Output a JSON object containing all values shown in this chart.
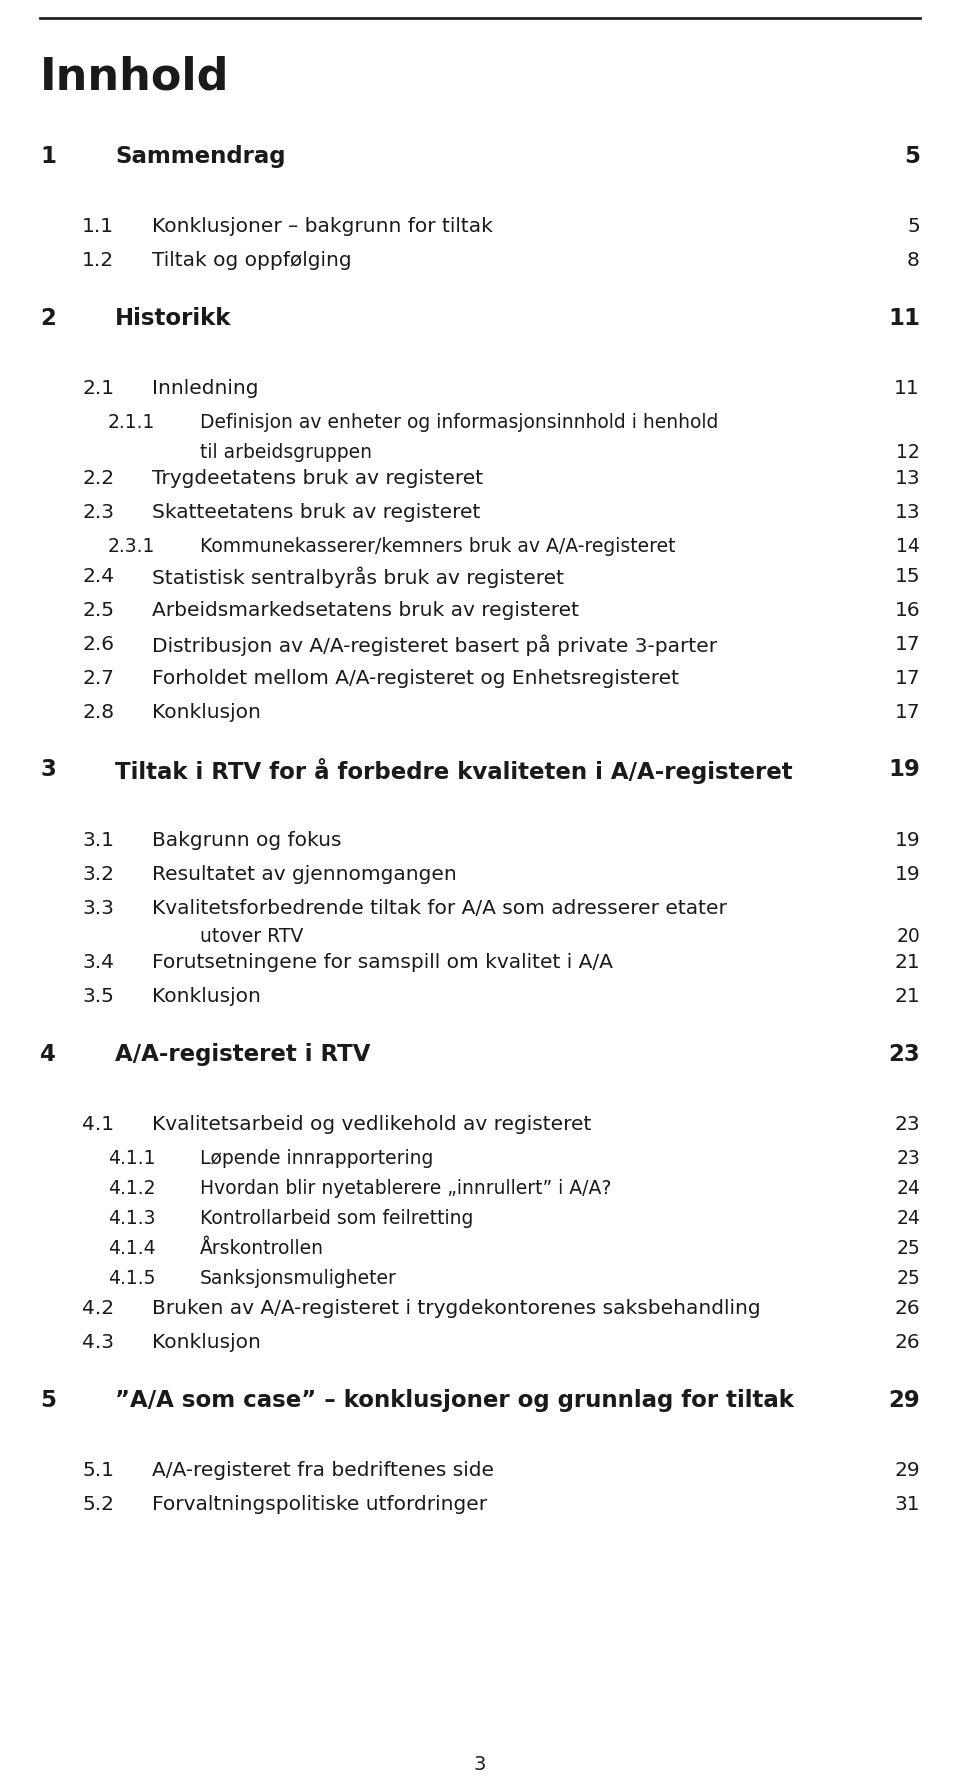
{
  "bg_color": "#ffffff",
  "text_color": "#1a1a1a",
  "title": "Innhold",
  "page_number_bottom": "3",
  "entries": [
    {
      "level": 1,
      "num": "1",
      "text": "Sammendrag",
      "page": "5",
      "bold": true
    },
    {
      "level": 2,
      "num": "1.1",
      "text": "Konklusjoner – bakgrunn for tiltak",
      "page": "5",
      "bold": false
    },
    {
      "level": 2,
      "num": "1.2",
      "text": "Tiltak og oppfølging",
      "page": "8",
      "bold": false
    },
    {
      "level": 1,
      "num": "2",
      "text": "Historikk",
      "page": "11",
      "bold": true
    },
    {
      "level": 2,
      "num": "2.1",
      "text": "Innledning",
      "page": "11",
      "bold": false
    },
    {
      "level": 3,
      "num": "2.1.1",
      "text": "Definisjon av enheter og informasjonsinnhold i henhold",
      "page": "",
      "bold": false
    },
    {
      "level": 3,
      "num": "",
      "text": "til arbeidsgruppen",
      "page": "12",
      "bold": false
    },
    {
      "level": 2,
      "num": "2.2",
      "text": "Trygdeetatens bruk av registeret",
      "page": "13",
      "bold": false
    },
    {
      "level": 2,
      "num": "2.3",
      "text": "Skatteetatens bruk av registeret",
      "page": "13",
      "bold": false
    },
    {
      "level": 3,
      "num": "2.3.1",
      "text": "Kommunekasserer/kemners bruk av A/A-registeret",
      "page": "14",
      "bold": false
    },
    {
      "level": 2,
      "num": "2.4",
      "text": "Statistisk sentralbyrås bruk av registeret",
      "page": "15",
      "bold": false
    },
    {
      "level": 2,
      "num": "2.5",
      "text": "Arbeidsmarkedsetatens bruk av registeret",
      "page": "16",
      "bold": false
    },
    {
      "level": 2,
      "num": "2.6",
      "text": "Distribusjon av A/A-registeret basert på private 3-parter",
      "page": "17",
      "bold": false
    },
    {
      "level": 2,
      "num": "2.7",
      "text": "Forholdet mellom A/A-registeret og Enhetsregisteret",
      "page": "17",
      "bold": false
    },
    {
      "level": 2,
      "num": "2.8",
      "text": "Konklusjon",
      "page": "17",
      "bold": false
    },
    {
      "level": 1,
      "num": "3",
      "text": "Tiltak i RTV for å forbedre kvaliteten i A/A-registeret",
      "page": "19",
      "bold": true
    },
    {
      "level": 2,
      "num": "3.1",
      "text": "Bakgrunn og fokus",
      "page": "19",
      "bold": false
    },
    {
      "level": 2,
      "num": "3.2",
      "text": "Resultatet av gjennomgangen",
      "page": "19",
      "bold": false
    },
    {
      "level": 2,
      "num": "3.3",
      "text": "Kvalitetsforbedrende tiltak for A/A som adresserer etater",
      "page": "",
      "bold": false
    },
    {
      "level": 3,
      "num": "",
      "text": "utover RTV",
      "page": "20",
      "bold": false
    },
    {
      "level": 2,
      "num": "3.4",
      "text": "Forutsetningene for samspill om kvalitet i A/A",
      "page": "21",
      "bold": false
    },
    {
      "level": 2,
      "num": "3.5",
      "text": "Konklusjon",
      "page": "21",
      "bold": false
    },
    {
      "level": 1,
      "num": "4",
      "text": "A/A-registeret i RTV",
      "page": "23",
      "bold": true
    },
    {
      "level": 2,
      "num": "4.1",
      "text": "Kvalitetsarbeid og vedlikehold av registeret",
      "page": "23",
      "bold": false
    },
    {
      "level": 3,
      "num": "4.1.1",
      "text": "Løpende innrapportering",
      "page": "23",
      "bold": false
    },
    {
      "level": 3,
      "num": "4.1.2",
      "text": "Hvordan blir nyetablerere „innrullert” i A/A?",
      "page": "24",
      "bold": false
    },
    {
      "level": 3,
      "num": "4.1.3",
      "text": "Kontrollarbeid som feilretting",
      "page": "24",
      "bold": false
    },
    {
      "level": 3,
      "num": "4.1.4",
      "text": "Årskontrollen",
      "page": "25",
      "bold": false
    },
    {
      "level": 3,
      "num": "4.1.5",
      "text": "Sanksjonsmuligheter",
      "page": "25",
      "bold": false
    },
    {
      "level": 2,
      "num": "4.2",
      "text": "Bruken av A/A-registeret i trygdekontorenes saksbehandling",
      "page": "26",
      "bold": false
    },
    {
      "level": 2,
      "num": "4.3",
      "text": "Konklusjon",
      "page": "26",
      "bold": false
    },
    {
      "level": 1,
      "num": "5",
      "text": "”A/A som case” – konklusjoner og grunnlag for tiltak",
      "page": "29",
      "bold": true
    },
    {
      "level": 2,
      "num": "5.1",
      "text": "A/A-registeret fra bedriftenes side",
      "page": "29",
      "bold": false
    },
    {
      "level": 2,
      "num": "5.2",
      "text": "Forvaltningspolitiske utfordringer",
      "page": "31",
      "bold": false
    }
  ]
}
